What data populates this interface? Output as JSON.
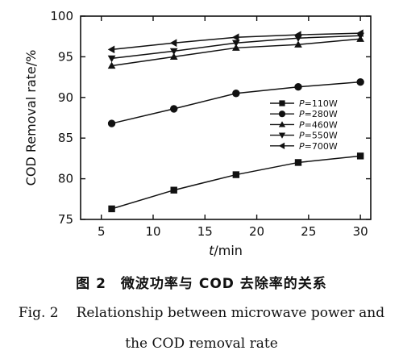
{
  "chart_data": {
    "type": "line",
    "xlabel_italic": "t",
    "xlabel_unit": "/min",
    "ylabel": "COD Removal rate/%",
    "xlim": [
      3,
      31
    ],
    "ylim": [
      75,
      100
    ],
    "xticks": [
      5,
      10,
      15,
      20,
      25,
      30
    ],
    "yticks": [
      75,
      80,
      85,
      90,
      95,
      100
    ],
    "grid": false,
    "legend_position": "right-middle",
    "series": [
      {
        "name_italic": "P",
        "name": "=110W",
        "marker": "square",
        "x": [
          6,
          12,
          18,
          24,
          30
        ],
        "values": [
          76.3,
          78.6,
          80.5,
          82.0,
          82.8
        ]
      },
      {
        "name_italic": "P",
        "name": "=280W",
        "marker": "circle",
        "x": [
          6,
          12,
          18,
          24,
          30
        ],
        "values": [
          86.8,
          88.6,
          90.5,
          91.3,
          91.9
        ]
      },
      {
        "name_italic": "P",
        "name": "=460W",
        "marker": "triangle-up",
        "x": [
          6,
          12,
          18,
          24,
          30
        ],
        "values": [
          93.9,
          95.0,
          96.1,
          96.5,
          97.2
        ]
      },
      {
        "name_italic": "P",
        "name": "=550W",
        "marker": "triangle-down",
        "x": [
          6,
          12,
          18,
          24,
          30
        ],
        "values": [
          94.8,
          95.7,
          96.7,
          97.3,
          97.6
        ]
      },
      {
        "name_italic": "P",
        "name": "=700W",
        "marker": "triangle-left",
        "x": [
          6,
          12,
          18,
          24,
          30
        ],
        "values": [
          95.9,
          96.7,
          97.4,
          97.7,
          97.9
        ]
      }
    ]
  },
  "caption": {
    "cn_label": "图 2",
    "cn_text": "微波功率与 COD 去除率的关系",
    "en_label": "Fig. 2",
    "en_line1": "Relationship between microwave power and",
    "en_line2": "the COD removal rate"
  }
}
